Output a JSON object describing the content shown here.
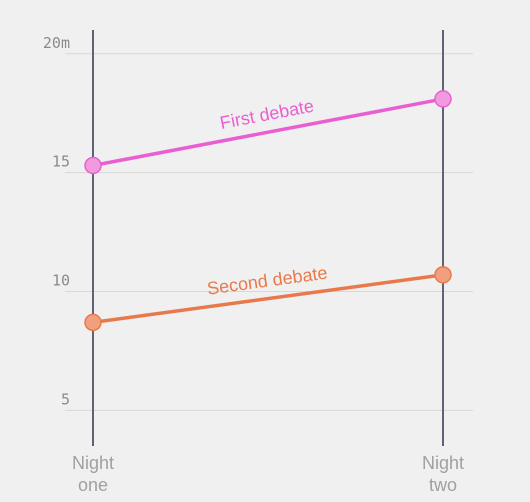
{
  "chart_data": {
    "type": "line",
    "categories": [
      {
        "line1": "Night",
        "line2": "one"
      },
      {
        "line1": "Night",
        "line2": "two"
      }
    ],
    "yticks": [
      {
        "value": 5,
        "label": "5"
      },
      {
        "value": 10,
        "label": "10"
      },
      {
        "value": 15,
        "label": "15"
      },
      {
        "value": 20,
        "label": "20m"
      }
    ],
    "ylim": [
      3.5,
      21
    ],
    "grid": true,
    "series": [
      {
        "name": "First debate",
        "values": [
          15.3,
          18.1
        ],
        "color": "#e95fd1",
        "marker_fill": "#f09ae0"
      },
      {
        "name": "Second debate",
        "values": [
          8.7,
          10.7
        ],
        "color": "#e8794a",
        "marker_fill": "#f0a07e"
      }
    ]
  }
}
